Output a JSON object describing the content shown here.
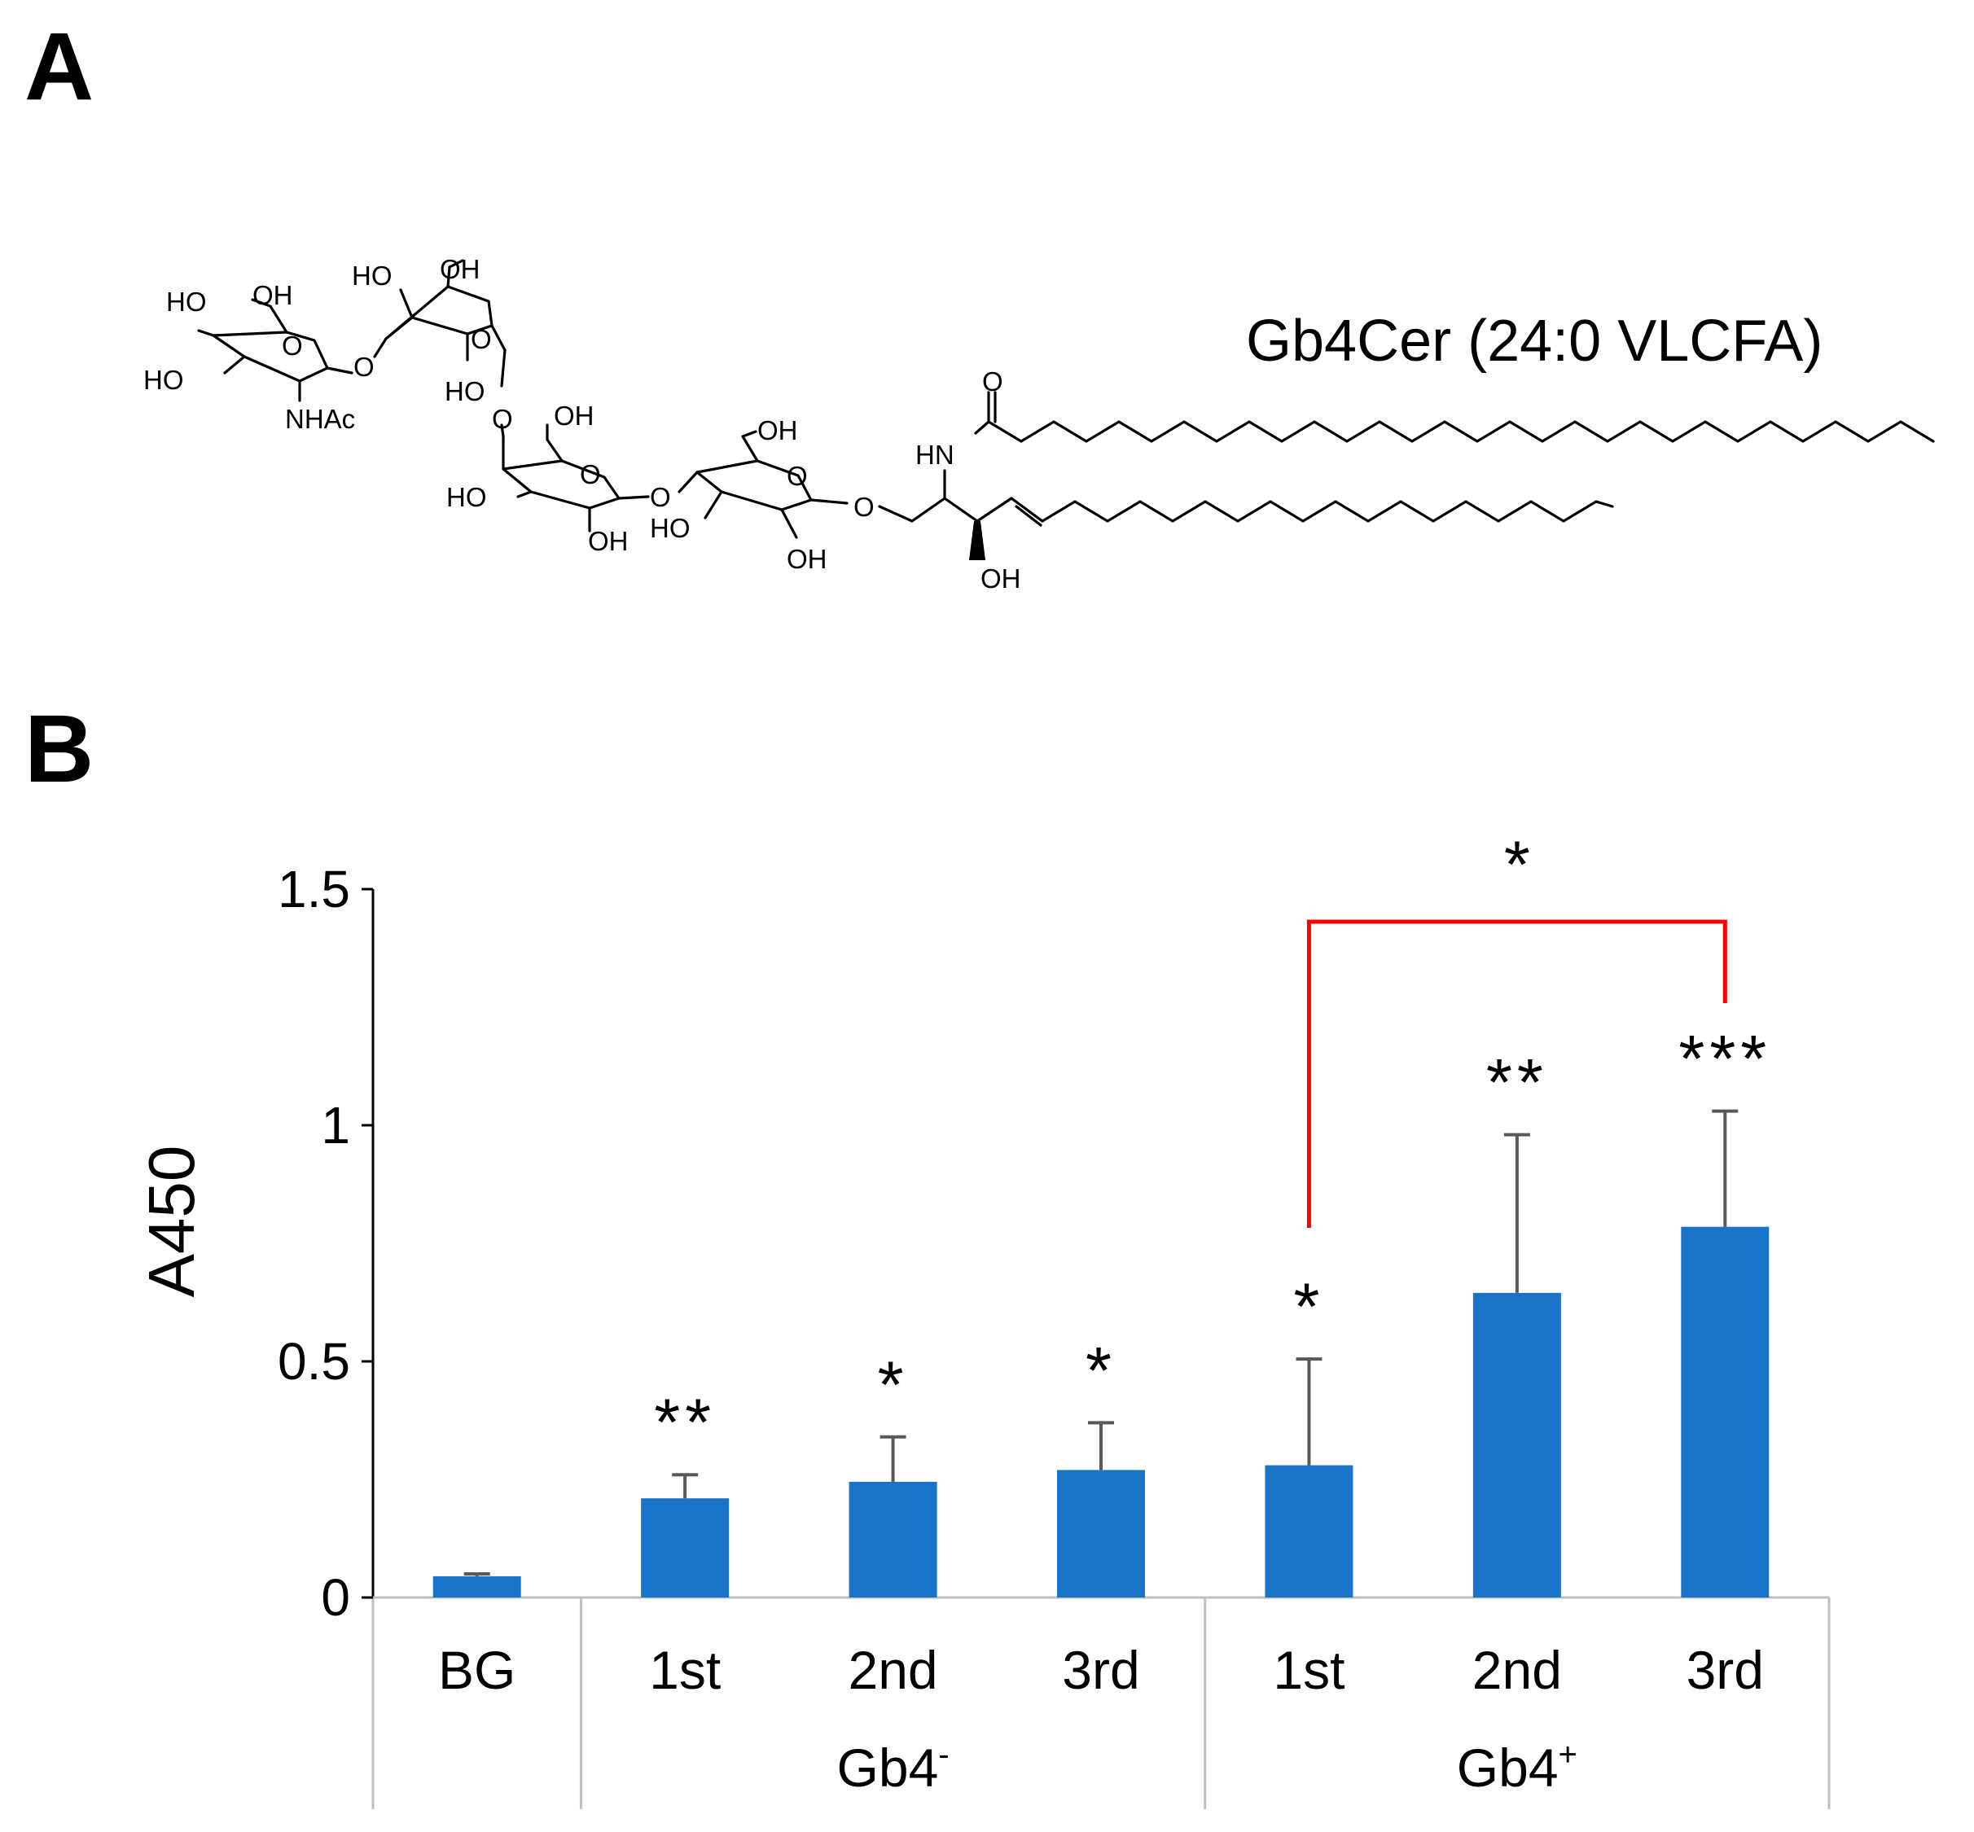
{
  "figure": {
    "panel_a_label": "A",
    "panel_b_label": "B"
  },
  "molecule": {
    "title": "Gb4Cer (24:0 VLCFA)",
    "atom_labels": [
      "HO",
      "OH",
      "O",
      "HO",
      "NHAc",
      "O",
      "HO",
      "OH",
      "O",
      "HO",
      "O",
      "OH",
      "HO",
      "O",
      "OH",
      "O",
      "OH",
      "HO",
      "O",
      "OH",
      "O",
      "HN",
      "O",
      "OH"
    ]
  },
  "chart_data": {
    "type": "bar",
    "ylabel": "A450",
    "ylim": [
      0,
      1.5
    ],
    "yticks": [
      "0",
      "0.5",
      "1",
      "1.5"
    ],
    "categories": [
      "BG",
      "1st",
      "2nd",
      "3rd",
      "1st",
      "2nd",
      "3rd"
    ],
    "groups": [
      {
        "label": "",
        "count": 1
      },
      {
        "label": "Gb4",
        "superscript": "-",
        "count": 3
      },
      {
        "label": "Gb4",
        "superscript": "+",
        "count": 3
      }
    ],
    "series": [
      {
        "name": "A450",
        "values": [
          0.045,
          0.21,
          0.245,
          0.27,
          0.28,
          0.645,
          0.785
        ],
        "errors": [
          0.005,
          0.05,
          0.095,
          0.1,
          0.225,
          0.335,
          0.245
        ],
        "significance": [
          "",
          "**",
          "*",
          "*",
          "*",
          "**",
          "***"
        ]
      }
    ],
    "comparison": {
      "from_index": 4,
      "to_index": 6,
      "label": "*"
    },
    "bar_color": "#1873c9",
    "error_color": "#595959",
    "bracket_color": "#ff0000"
  }
}
